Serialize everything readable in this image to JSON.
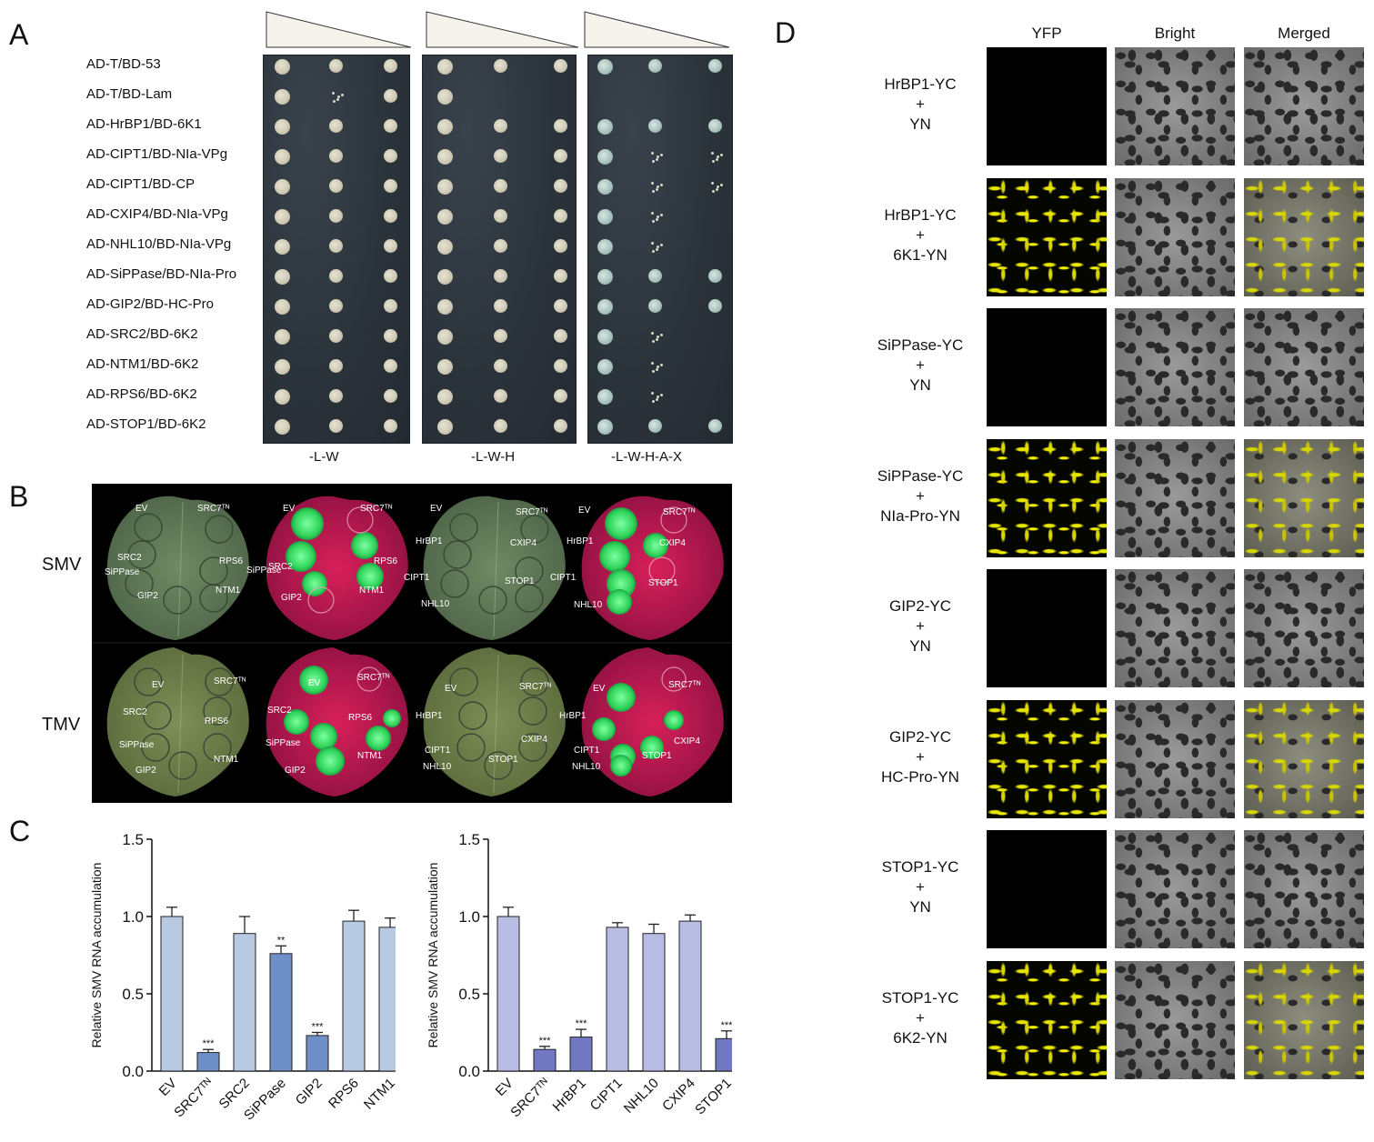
{
  "panel_letters": {
    "a": "A",
    "b": "B",
    "c": "C",
    "d": "D"
  },
  "panel_a": {
    "rows": [
      "AD-T/BD-53",
      "AD-T/BD-Lam",
      "AD-HrBP1/BD-6K1",
      "AD-CIPT1/BD-NIa-VPg",
      "AD-CIPT1/BD-CP",
      "AD-CXIP4/BD-NIa-VPg",
      "AD-NHL10/BD-NIa-VPg",
      "AD-SiPPase/BD-NIa-Pro",
      "AD-GIP2/BD-HC-Pro",
      "AD-SRC2/BD-6K2",
      "AD-NTM1/BD-6K2",
      "AD-RPS6/BD-6K2",
      "AD-STOP1/BD-6K2"
    ],
    "media": [
      "-L-W",
      "-L-W-H",
      "-L-W-H-A-X"
    ]
  },
  "panel_b": {
    "virus_labels": [
      "SMV",
      "TMV"
    ],
    "leaf_set_1": [
      "EV",
      "SRC7ᵀᴺ",
      "SRC2",
      "RPS6",
      "SiPPase",
      "GIP2",
      "NTM1"
    ],
    "leaf_set_2": [
      "EV",
      "SRC7ᵀᴺ",
      "HrBP1",
      "CXIP4",
      "CIPT1",
      "STOP1",
      "NHL10"
    ]
  },
  "colors": {
    "bar_light": "#b8c9e3",
    "bar_dark": "#6f8fc8",
    "bar_lavender": "#b9bde4",
    "bar_lav_dark": "#7278c2",
    "green_fluor": "#4cff7a",
    "leaf_red": "#c8164a"
  },
  "chart_data": [
    {
      "type": "bar",
      "ylabel": "Relative SMV RNA accumulation",
      "ylim": [
        0,
        1.5
      ],
      "yticks": [
        "0.0",
        "0.5",
        "1.0",
        "1.5"
      ],
      "categories": [
        "EV",
        "SRC7ᵀᴺ",
        "SRC2",
        "SiPPase",
        "GIP2",
        "RPS6",
        "NTM1"
      ],
      "values": [
        1.0,
        0.12,
        0.89,
        0.76,
        0.23,
        0.97,
        0.93
      ],
      "errors": [
        0.06,
        0.02,
        0.11,
        0.05,
        0.02,
        0.07,
        0.06
      ],
      "significance": [
        "",
        "***",
        "",
        "**",
        "***",
        "",
        ""
      ],
      "highlight": [
        false,
        true,
        false,
        true,
        true,
        false,
        false
      ]
    },
    {
      "type": "bar",
      "ylabel": "Relative SMV RNA accumulation",
      "ylim": [
        0,
        1.5
      ],
      "yticks": [
        "0.0",
        "0.5",
        "1.0",
        "1.5"
      ],
      "categories": [
        "EV",
        "SRC7ᵀᴺ",
        "HrBP1",
        "CIPT1",
        "NHL10",
        "CXIP4",
        "STOP1"
      ],
      "values": [
        1.0,
        0.14,
        0.22,
        0.93,
        0.89,
        0.97,
        0.21
      ],
      "errors": [
        0.06,
        0.02,
        0.05,
        0.03,
        0.06,
        0.04,
        0.05
      ],
      "significance": [
        "",
        "***",
        "***",
        "",
        "",
        "",
        "***"
      ],
      "highlight": [
        false,
        true,
        true,
        false,
        false,
        false,
        true
      ]
    }
  ],
  "panel_d": {
    "columns": [
      "YFP",
      "Bright",
      "Merged"
    ],
    "rows": [
      {
        "line1": "HrBP1-YC",
        "line2": "+",
        "line3": "YN",
        "yfp": false
      },
      {
        "line1": "HrBP1-YC",
        "line2": "+",
        "line3": "6K1-YN",
        "yfp": true
      },
      {
        "line1": "SiPPase-YC",
        "line2": "+",
        "line3": "YN",
        "yfp": false
      },
      {
        "line1": "SiPPase-YC",
        "line2": "+",
        "line3": "NIa-Pro-YN",
        "yfp": true
      },
      {
        "line1": "GIP2-YC",
        "line2": "+",
        "line3": "YN",
        "yfp": false
      },
      {
        "line1": "GIP2-YC",
        "line2": "+",
        "line3": "HC-Pro-YN",
        "yfp": true
      },
      {
        "line1": "STOP1-YC",
        "line2": "+",
        "line3": "YN",
        "yfp": false
      },
      {
        "line1": "STOP1-YC",
        "line2": "+",
        "line3": "6K2-YN",
        "yfp": true
      }
    ]
  }
}
